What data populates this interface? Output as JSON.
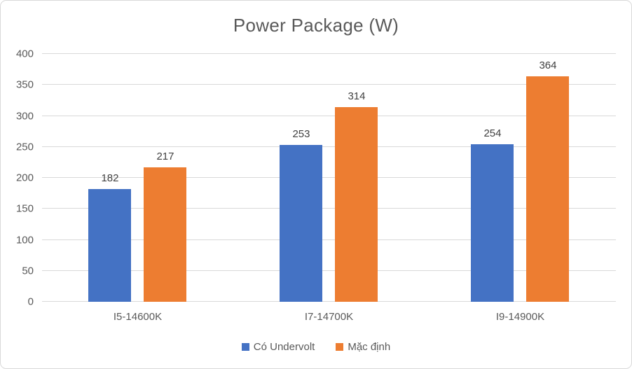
{
  "chart_data": {
    "type": "bar",
    "title": "Power Package (W)",
    "categories": [
      "I5-14600K",
      "I7-14700K",
      "I9-14900K"
    ],
    "series": [
      {
        "name": "Có Undervolt",
        "color": "#4472C4",
        "values": [
          182,
          253,
          254
        ]
      },
      {
        "name": "Mặc định",
        "color": "#ED7D31",
        "values": [
          217,
          314,
          364
        ]
      }
    ],
    "ylim": [
      0,
      400
    ],
    "yticks": [
      0,
      50,
      100,
      150,
      200,
      250,
      300,
      350,
      400
    ],
    "xlabel": "",
    "ylabel": "",
    "grid": true,
    "legend_position": "bottom"
  },
  "colors": {
    "title_text": "#595959",
    "axis_text": "#595959",
    "data_label_text": "#404040",
    "gridline": "#d9d9d9",
    "frame_border": "#d9d9d9",
    "background": "#ffffff"
  }
}
